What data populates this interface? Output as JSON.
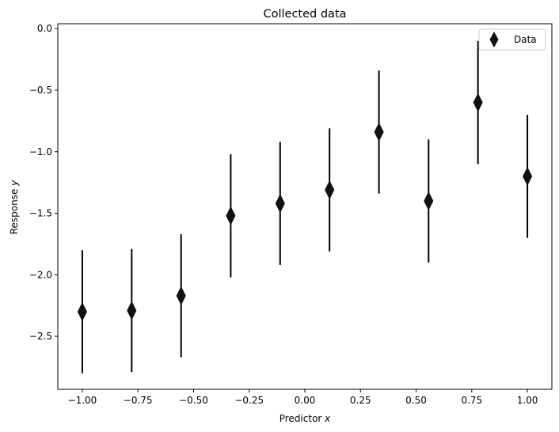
{
  "chart_data": {
    "type": "scatter",
    "title": "Collected data",
    "xlabel": {
      "text": "Predictor ",
      "var": "x"
    },
    "ylabel": {
      "text": "Response ",
      "var": "y"
    },
    "xlim": [
      -1.11,
      1.11
    ],
    "ylim": [
      -2.93,
      0.04
    ],
    "xticks": [
      -1.0,
      -0.75,
      -0.5,
      -0.25,
      0.0,
      0.25,
      0.5,
      0.75,
      1.0
    ],
    "xtick_labels": [
      "−1.00",
      "−0.75",
      "−0.50",
      "−0.25",
      "0.00",
      "0.25",
      "0.50",
      "0.75",
      "1.00"
    ],
    "yticks": [
      0.0,
      -0.5,
      -1.0,
      -1.5,
      -2.0,
      -2.5
    ],
    "ytick_labels": [
      "0.0",
      "−0.5",
      "−1.0",
      "−1.5",
      "−2.0",
      "−2.5"
    ],
    "grid": false,
    "legend_position": "upper right",
    "series": [
      {
        "name": "Data",
        "marker": "thin_diamond",
        "color": "#111111",
        "x": [
          -1.0,
          -0.778,
          -0.556,
          -0.333,
          -0.111,
          0.111,
          0.333,
          0.556,
          0.778,
          1.0
        ],
        "y": [
          -2.3,
          -2.29,
          -2.17,
          -1.52,
          -1.42,
          -1.31,
          -0.84,
          -1.4,
          -0.6,
          -1.2
        ],
        "yerr": [
          0.5,
          0.5,
          0.5,
          0.5,
          0.5,
          0.5,
          0.5,
          0.5,
          0.5,
          0.5
        ]
      }
    ]
  }
}
